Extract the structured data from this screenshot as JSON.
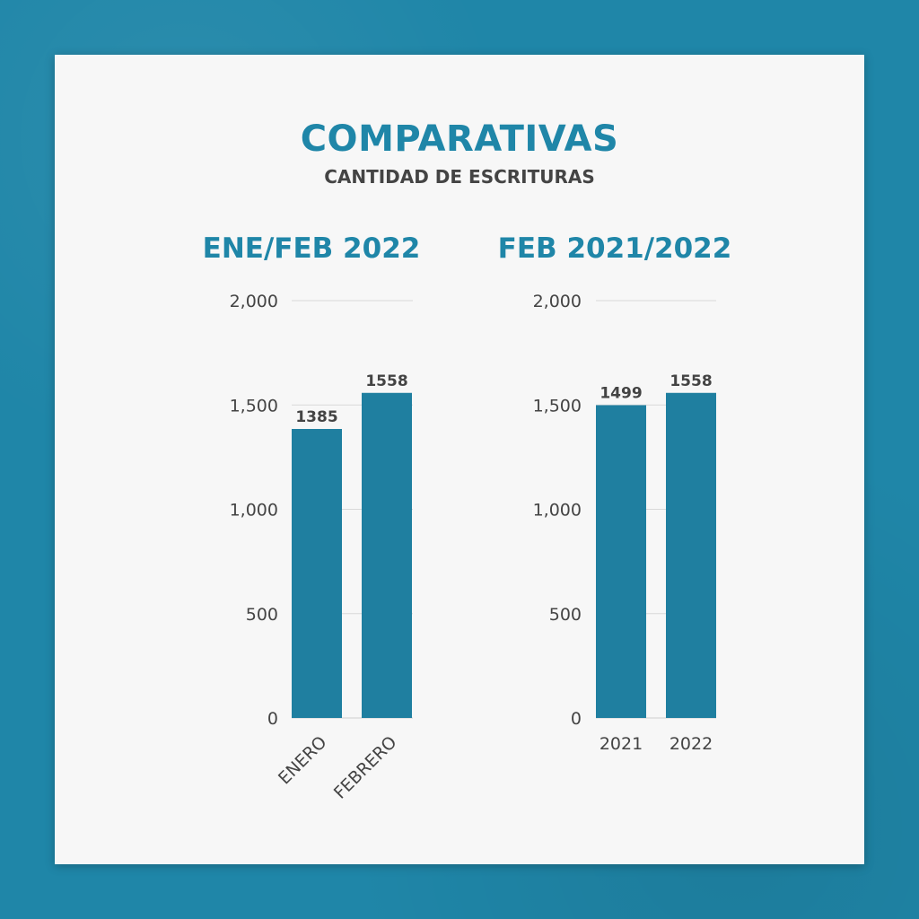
{
  "header": {
    "title": "COMPARATIVAS",
    "subtitle": "CANTIDAD DE ESCRITURAS"
  },
  "colors": {
    "background": "#1f86a8",
    "card": "#f7f7f7",
    "bar": "#1f7fa0",
    "heading": "#1f86a8",
    "text": "#444444"
  },
  "chart_data": [
    {
      "type": "bar",
      "title": "ENE/FEB 2022",
      "categories": [
        "ENERO",
        "FEBRERO"
      ],
      "values": [
        1385,
        1558
      ],
      "data_labels": [
        "1385",
        "1558"
      ],
      "ylim": [
        0,
        2000
      ],
      "yticks": [
        0,
        500,
        1000,
        1500,
        2000
      ],
      "ytick_labels": [
        "0",
        "500",
        "1,000",
        "1,500",
        "2,000"
      ],
      "rotated_xlabels": true
    },
    {
      "type": "bar",
      "title": "FEB 2021/2022",
      "categories": [
        "2021",
        "2022"
      ],
      "values": [
        1499,
        1558
      ],
      "data_labels": [
        "1499",
        "1558"
      ],
      "ylim": [
        0,
        2000
      ],
      "yticks": [
        0,
        500,
        1000,
        1500,
        2000
      ],
      "ytick_labels": [
        "0",
        "500",
        "1,000",
        "1,500",
        "2,000"
      ],
      "rotated_xlabels": false
    }
  ]
}
